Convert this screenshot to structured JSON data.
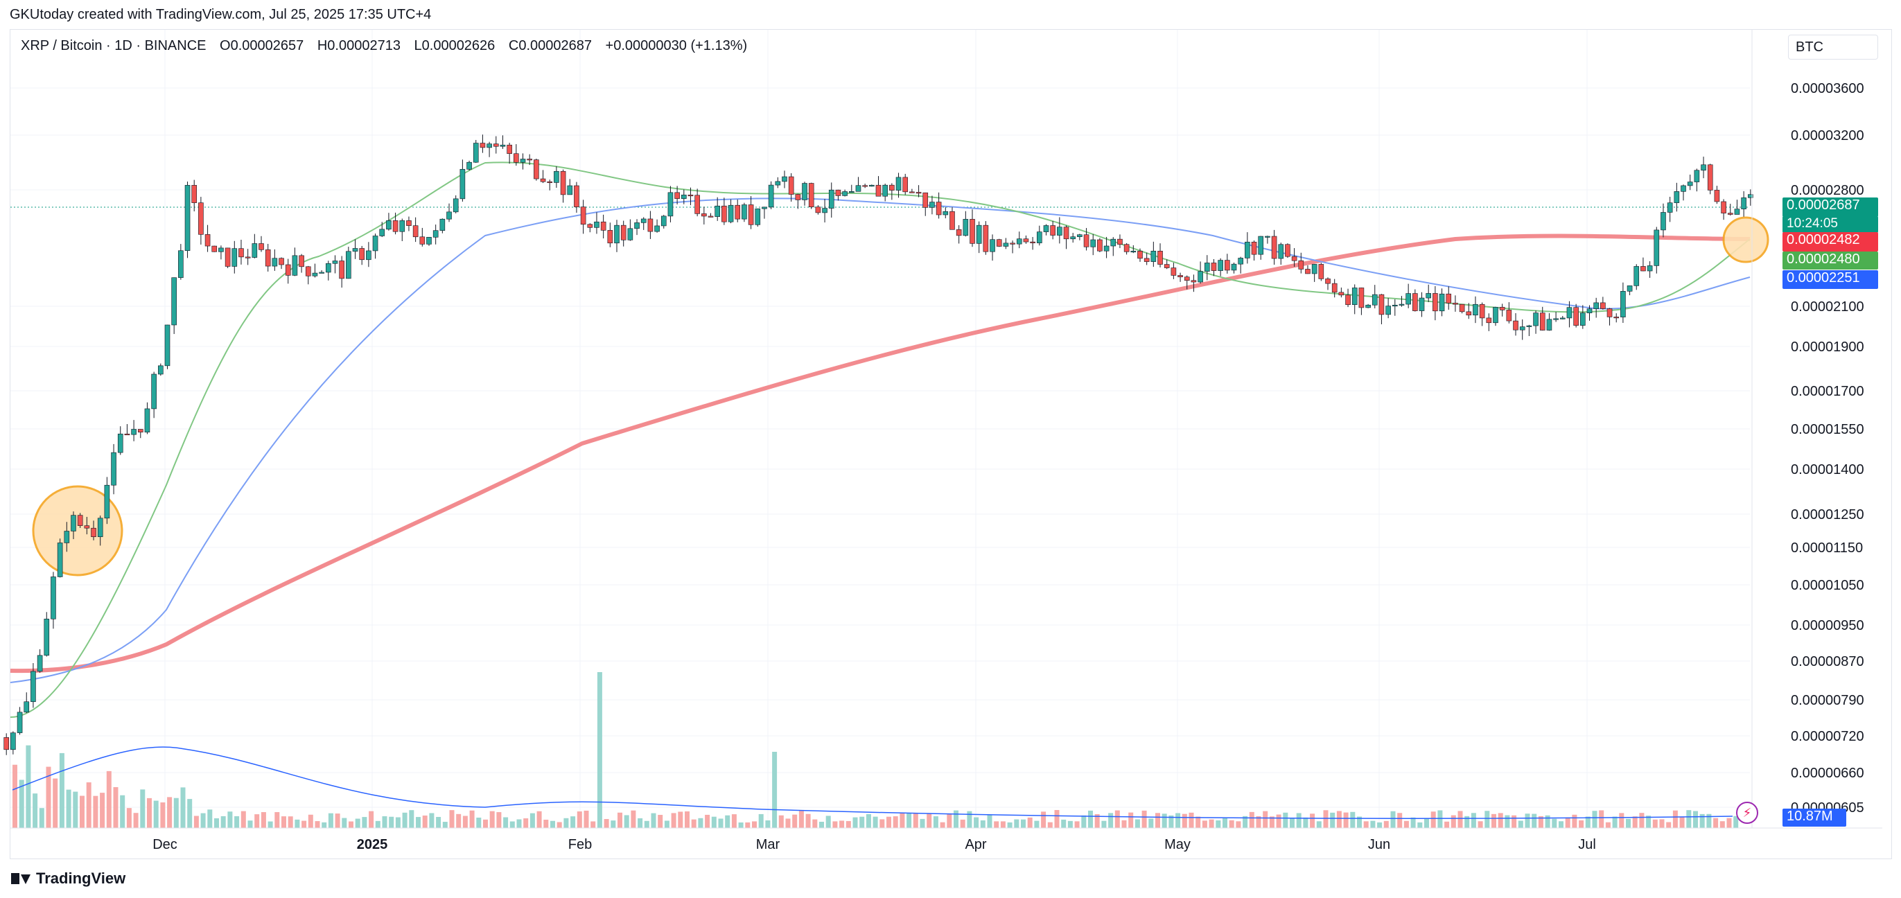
{
  "credit": "GKUtoday created with TradingView.com, Jul 25, 2025 17:35 UTC+4",
  "legend": {
    "symbol": "XRP / Bitcoin · 1D · BINANCE",
    "open": "O0.00002657",
    "high": "H0.00002713",
    "low": "L0.00002626",
    "close": "C0.00002687",
    "change": "+0.00000030 (+1.13%)"
  },
  "currency": "BTC",
  "brand": "TradingView",
  "price_tags": {
    "last_price": "0.00002687",
    "countdown": "10:24:05",
    "ma_red": "0.00002482",
    "ma_green": "0.00002480",
    "ma_blue": "0.00002251",
    "volume": "10.87M"
  },
  "colors": {
    "up": "#26a69a",
    "down": "#ef5350",
    "ma_short": "#81c784",
    "ma_mid": "#7b9ff5",
    "ma_long": "#f28b8f",
    "highlight_fill": "#ffe0b2",
    "highlight_stroke": "#f5a623"
  },
  "chart_data": {
    "type": "candlestick",
    "scale": "log",
    "ylim": [
      6.6e-06,
      3.9e-06
    ],
    "x_ticks": [
      "Dec",
      "2025",
      "Feb",
      "Mar",
      "Apr",
      "May",
      "Jun",
      "Jul"
    ],
    "y_ticks": [
      "0.00003600",
      "0.00003200",
      "0.00002800",
      "0.00002100",
      "0.00001900",
      "0.00001700",
      "0.00001550",
      "0.00001400",
      "0.00001250",
      "0.00001150",
      "0.00001050",
      "0.00000950",
      "0.00000870",
      "0.00000790",
      "0.00000720",
      "0.00000660",
      "0.00000605"
    ],
    "x_range": [
      "Nov 2024",
      "Jul 2025"
    ],
    "approx_closes": [
      [
        "Nov 7",
        7.2e-06
      ],
      [
        "Nov 10",
        7.8e-06
      ],
      [
        "Nov 13",
        9.8e-06
      ],
      [
        "Nov 16",
        1.23e-05
      ],
      [
        "Nov 20",
        1.21e-05
      ],
      [
        "Nov 24",
        1.5e-05
      ],
      [
        "Nov 28",
        1.6e-05
      ],
      [
        "Dec 1",
        2e-05
      ],
      [
        "Dec 4",
        2.75e-05
      ],
      [
        "Dec 8",
        2.35e-05
      ],
      [
        "Dec 13",
        2.4e-05
      ],
      [
        "Dec 20",
        2.32e-05
      ],
      [
        "Dec 27",
        2.3e-05
      ],
      [
        "Jan 3",
        2.55e-05
      ],
      [
        "Jan 10",
        2.48e-05
      ],
      [
        "Jan 16",
        3.2e-05
      ],
      [
        "Jan 22",
        3e-05
      ],
      [
        "Jan 28",
        2.9e-05
      ],
      [
        "Feb 2",
        2.55e-05
      ],
      [
        "Feb 8",
        2.5e-05
      ],
      [
        "Feb 14",
        2.7e-05
      ],
      [
        "Feb 20",
        2.68e-05
      ],
      [
        "Feb 26",
        2.62e-05
      ],
      [
        "Mar 2",
        2.9e-05
      ],
      [
        "Mar 8",
        2.7e-05
      ],
      [
        "Mar 14",
        2.75e-05
      ],
      [
        "Mar 20",
        2.85e-05
      ],
      [
        "Mar 27",
        2.62e-05
      ],
      [
        "Apr 3",
        2.45e-05
      ],
      [
        "Apr 10",
        2.52e-05
      ],
      [
        "Apr 17",
        2.48e-05
      ],
      [
        "Apr 24",
        2.4e-05
      ],
      [
        "May 1",
        2.25e-05
      ],
      [
        "May 8",
        2.35e-05
      ],
      [
        "May 13",
        2.48e-05
      ],
      [
        "May 18",
        2.32e-05
      ],
      [
        "May 25",
        2.18e-05
      ],
      [
        "Jun 1",
        2.1e-05
      ],
      [
        "Jun 8",
        2.12e-05
      ],
      [
        "Jun 15",
        2.08e-05
      ],
      [
        "Jun 22",
        2e-05
      ],
      [
        "Jun 28",
        2.05e-05
      ],
      [
        "Jul 5",
        2.1e-05
      ],
      [
        "Jul 10",
        2.35e-05
      ],
      [
        "Jul 14",
        2.85e-05
      ],
      [
        "Jul 18",
        2.9e-05
      ],
      [
        "Jul 22",
        2.65e-05
      ],
      [
        "Jul 25",
        2.687e-05
      ]
    ],
    "series": [
      {
        "name": "",
        "type": "moving-average",
        "approx_values": [
          7.5e-06,
          1.2e-05,
          2.3e-05,
          2.4e-05,
          2.6e-05,
          2.8e-05,
          2.7e-05,
          2.4e-05,
          2.1e-05,
          2e-05,
          2.48e-05
        ]
      },
      {
        "name": "",
        "type": "moving-average",
        "approx_values": [
          8e-06,
          9.5e-06,
          2e-05,
          2.6e-05,
          2.8e-05,
          2.7e-05,
          2.5e-05,
          2.2e-05,
          2e-05,
          2.25e-05
        ]
      },
      {
        "name": "",
        "type": "moving-average",
        "approx_values": [
          8.4e-06,
          1.05e-05,
          1.4e-05,
          1.7e-05,
          2.1e-05,
          2.4e-05,
          2.45e-05,
          2.48e-05
        ]
      }
    ],
    "annotations": [
      "highlight circle (Nov 2024)",
      "highlight circle (Jul 2025)"
    ]
  }
}
